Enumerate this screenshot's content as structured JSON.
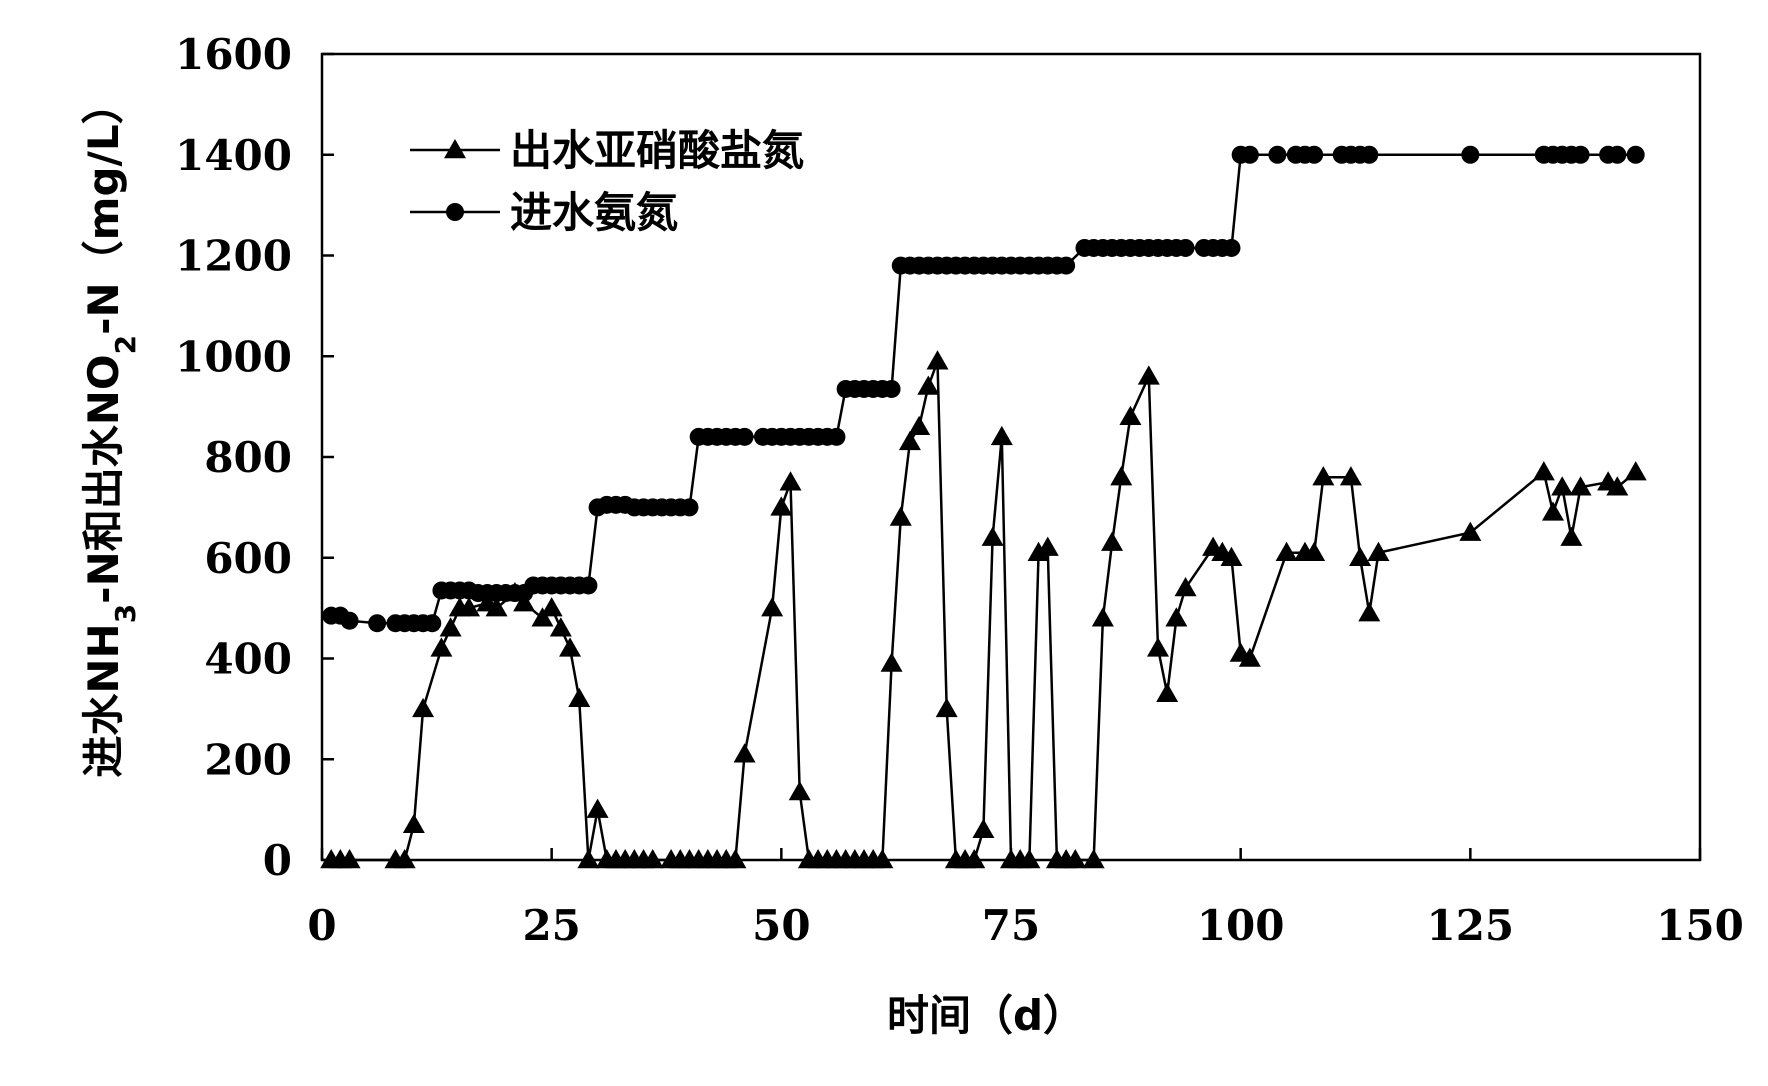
{
  "chart_data": {
    "type": "line",
    "xlabel": "时间（d）",
    "ylabel": {
      "parts": [
        "进水NH",
        "3",
        "-N和出水NO",
        "2",
        "-N（mg/L）"
      ]
    },
    "xlim": [
      0,
      150
    ],
    "ylim": [
      0,
      1600
    ],
    "x_ticks": [
      0,
      25,
      50,
      75,
      100,
      125,
      150
    ],
    "y_ticks": [
      0,
      200,
      400,
      600,
      800,
      1000,
      1200,
      1400,
      1600
    ],
    "grid": false,
    "legend": "top-left",
    "series": [
      {
        "name": "出水亚硝酸盐氮",
        "marker": "triangle",
        "color": "#000000",
        "points": [
          [
            1,
            0
          ],
          [
            2,
            0
          ],
          [
            3,
            0
          ],
          [
            8,
            0
          ],
          [
            9,
            0
          ],
          [
            10,
            70
          ],
          [
            11,
            300
          ],
          [
            13,
            420
          ],
          [
            14,
            460
          ],
          [
            15,
            500
          ],
          [
            16,
            500
          ],
          [
            18,
            510
          ],
          [
            19,
            500
          ],
          [
            21,
            530
          ],
          [
            22,
            510
          ],
          [
            24,
            480
          ],
          [
            25,
            500
          ],
          [
            26,
            460
          ],
          [
            27,
            420
          ],
          [
            28,
            320
          ],
          [
            29,
            0
          ],
          [
            30,
            100
          ],
          [
            31,
            0
          ],
          [
            32,
            0
          ],
          [
            33,
            0
          ],
          [
            34,
            0
          ],
          [
            35,
            0
          ],
          [
            36,
            0
          ],
          [
            38,
            0
          ],
          [
            39,
            0
          ],
          [
            40,
            0
          ],
          [
            41,
            0
          ],
          [
            42,
            0
          ],
          [
            43,
            0
          ],
          [
            44,
            0
          ],
          [
            45,
            0
          ],
          [
            46,
            210
          ],
          [
            49,
            500
          ],
          [
            50,
            700
          ],
          [
            51,
            750
          ],
          [
            52,
            135
          ],
          [
            53,
            0
          ],
          [
            54,
            0
          ],
          [
            55,
            0
          ],
          [
            56,
            0
          ],
          [
            57,
            0
          ],
          [
            58,
            0
          ],
          [
            59,
            0
          ],
          [
            60,
            0
          ],
          [
            61,
            0
          ],
          [
            62,
            390
          ],
          [
            63,
            680
          ],
          [
            64,
            830
          ],
          [
            65,
            860
          ],
          [
            66,
            940
          ],
          [
            67,
            990
          ],
          [
            68,
            300
          ],
          [
            69,
            0
          ],
          [
            70,
            0
          ],
          [
            71,
            0
          ],
          [
            72,
            60
          ],
          [
            73,
            640
          ],
          [
            74,
            840
          ],
          [
            75,
            0
          ],
          [
            76,
            0
          ],
          [
            77,
            0
          ],
          [
            78,
            610
          ],
          [
            79,
            620
          ],
          [
            80,
            0
          ],
          [
            81,
            0
          ],
          [
            82,
            0
          ],
          [
            84,
            0
          ],
          [
            85,
            480
          ],
          [
            86,
            630
          ],
          [
            87,
            760
          ],
          [
            88,
            880
          ],
          [
            90,
            960
          ],
          [
            91,
            420
          ],
          [
            92,
            330
          ],
          [
            93,
            480
          ],
          [
            94,
            540
          ],
          [
            97,
            620
          ],
          [
            98,
            610
          ],
          [
            99,
            600
          ],
          [
            100,
            410
          ],
          [
            101,
            400
          ],
          [
            105,
            610
          ],
          [
            107,
            610
          ],
          [
            108,
            610
          ],
          [
            109,
            760
          ],
          [
            112,
            760
          ],
          [
            113,
            600
          ],
          [
            114,
            490
          ],
          [
            115,
            610
          ],
          [
            125,
            650
          ],
          [
            133,
            770
          ],
          [
            134,
            690
          ],
          [
            135,
            740
          ],
          [
            136,
            640
          ],
          [
            137,
            740
          ],
          [
            140,
            750
          ],
          [
            141,
            740
          ],
          [
            143,
            770
          ]
        ]
      },
      {
        "name": "进水氨氮",
        "marker": "circle",
        "color": "#000000",
        "points": [
          [
            1,
            485
          ],
          [
            2,
            485
          ],
          [
            3,
            475
          ],
          [
            6,
            470
          ],
          [
            8,
            470
          ],
          [
            9,
            470
          ],
          [
            10,
            470
          ],
          [
            11,
            470
          ],
          [
            12,
            470
          ],
          [
            13,
            535
          ],
          [
            14,
            535
          ],
          [
            15,
            535
          ],
          [
            16,
            535
          ],
          [
            17,
            530
          ],
          [
            18,
            530
          ],
          [
            19,
            530
          ],
          [
            20,
            530
          ],
          [
            21,
            530
          ],
          [
            22,
            530
          ],
          [
            23,
            545
          ],
          [
            24,
            545
          ],
          [
            25,
            545
          ],
          [
            26,
            545
          ],
          [
            27,
            545
          ],
          [
            28,
            545
          ],
          [
            29,
            545
          ],
          [
            30,
            700
          ],
          [
            31,
            705
          ],
          [
            32,
            705
          ],
          [
            33,
            705
          ],
          [
            34,
            700
          ],
          [
            35,
            700
          ],
          [
            36,
            700
          ],
          [
            37,
            700
          ],
          [
            38,
            700
          ],
          [
            39,
            700
          ],
          [
            40,
            700
          ],
          [
            41,
            840
          ],
          [
            42,
            840
          ],
          [
            43,
            840
          ],
          [
            44,
            840
          ],
          [
            45,
            840
          ],
          [
            46,
            840
          ],
          [
            48,
            840
          ],
          [
            49,
            840
          ],
          [
            50,
            840
          ],
          [
            51,
            840
          ],
          [
            52,
            840
          ],
          [
            53,
            840
          ],
          [
            54,
            840
          ],
          [
            55,
            840
          ],
          [
            56,
            840
          ],
          [
            57,
            935
          ],
          [
            58,
            935
          ],
          [
            59,
            935
          ],
          [
            60,
            935
          ],
          [
            61,
            935
          ],
          [
            62,
            935
          ],
          [
            63,
            1180
          ],
          [
            64,
            1180
          ],
          [
            65,
            1180
          ],
          [
            66,
            1180
          ],
          [
            67,
            1180
          ],
          [
            68,
            1180
          ],
          [
            69,
            1180
          ],
          [
            70,
            1180
          ],
          [
            71,
            1180
          ],
          [
            72,
            1180
          ],
          [
            73,
            1180
          ],
          [
            74,
            1180
          ],
          [
            75,
            1180
          ],
          [
            76,
            1180
          ],
          [
            77,
            1180
          ],
          [
            78,
            1180
          ],
          [
            79,
            1180
          ],
          [
            80,
            1180
          ],
          [
            81,
            1180
          ],
          [
            83,
            1215
          ],
          [
            84,
            1215
          ],
          [
            85,
            1215
          ],
          [
            86,
            1215
          ],
          [
            87,
            1215
          ],
          [
            88,
            1215
          ],
          [
            89,
            1215
          ],
          [
            90,
            1215
          ],
          [
            91,
            1215
          ],
          [
            92,
            1215
          ],
          [
            93,
            1215
          ],
          [
            94,
            1215
          ],
          [
            96,
            1215
          ],
          [
            97,
            1215
          ],
          [
            98,
            1215
          ],
          [
            99,
            1215
          ],
          [
            100,
            1400
          ],
          [
            101,
            1400
          ],
          [
            104,
            1400
          ],
          [
            106,
            1400
          ],
          [
            107,
            1400
          ],
          [
            108,
            1400
          ],
          [
            111,
            1400
          ],
          [
            112,
            1400
          ],
          [
            113,
            1400
          ],
          [
            114,
            1400
          ],
          [
            125,
            1400
          ],
          [
            133,
            1400
          ],
          [
            134,
            1400
          ],
          [
            135,
            1400
          ],
          [
            136,
            1400
          ],
          [
            137,
            1400
          ],
          [
            140,
            1400
          ],
          [
            141,
            1400
          ],
          [
            143,
            1400
          ]
        ]
      }
    ]
  }
}
